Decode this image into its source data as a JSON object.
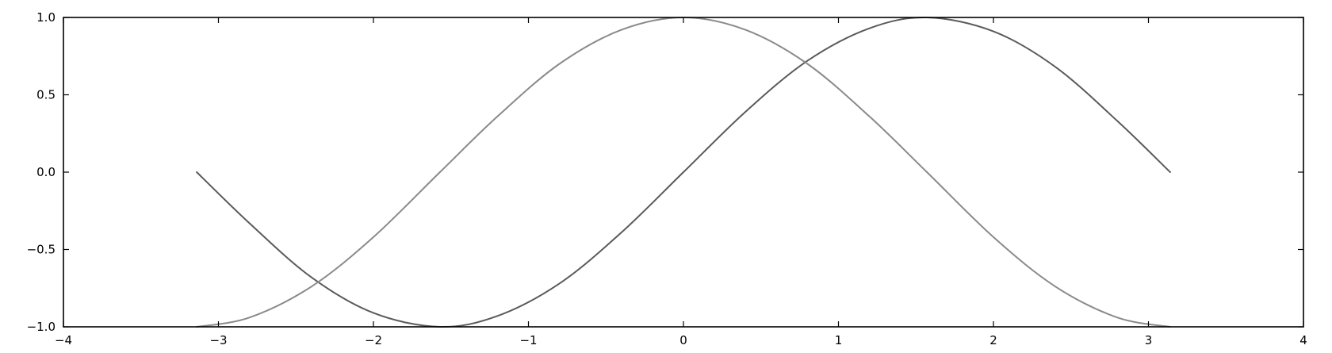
{
  "chart_data": {
    "type": "line",
    "title": "",
    "xlabel": "",
    "ylabel": "",
    "xlim": [
      -4,
      4
    ],
    "ylim": [
      -1.0,
      1.0
    ],
    "grid": false,
    "legend": "none",
    "x_ticks": [
      -4,
      -3,
      -2,
      -1,
      0,
      1,
      2,
      3,
      4
    ],
    "x_tick_labels": [
      "−4",
      "−3",
      "−2",
      "−1",
      "0",
      "1",
      "2",
      "3",
      "4"
    ],
    "y_ticks": [
      -1.0,
      -0.5,
      0.0,
      0.5,
      1.0
    ],
    "y_tick_labels": [
      "−1.0",
      "−0.5",
      "0.0",
      "0.5",
      "1.0"
    ],
    "series": [
      {
        "color": "#5a5a5a",
        "x": [
          -3.14,
          -2.8,
          -2.4,
          -2.0,
          -1.571,
          -1.2,
          -0.8,
          -0.4,
          0.0,
          0.4,
          0.8,
          1.2,
          1.571,
          2.0,
          2.4,
          2.8,
          3.14
        ],
        "y": [
          0.0,
          -0.33,
          -0.68,
          -0.91,
          -1.0,
          -0.93,
          -0.72,
          -0.39,
          0.0,
          0.39,
          0.72,
          0.93,
          1.0,
          0.91,
          0.68,
          0.33,
          0.0
        ]
      },
      {
        "color": "#8a8a8a",
        "x": [
          -3.14,
          -2.8,
          -2.4,
          -2.0,
          -1.571,
          -1.2,
          -0.8,
          -0.4,
          0.0,
          0.4,
          0.8,
          1.2,
          1.571,
          2.0,
          2.4,
          2.8,
          3.14
        ],
        "y": [
          -1.0,
          -0.94,
          -0.74,
          -0.42,
          0.0,
          0.36,
          0.7,
          0.92,
          1.0,
          0.92,
          0.7,
          0.36,
          0.0,
          -0.42,
          -0.74,
          -0.94,
          -1.0
        ]
      }
    ]
  }
}
